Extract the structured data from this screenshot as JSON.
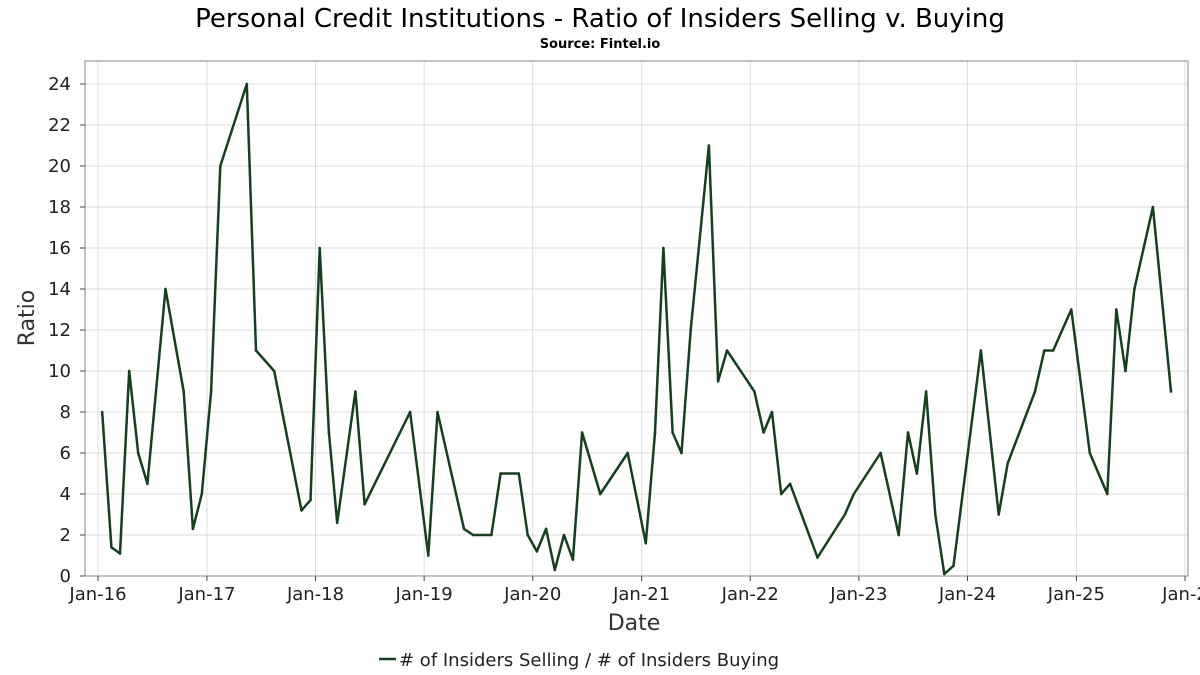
{
  "colors": {
    "series": "#173f1f",
    "grid": "#dddddd"
  },
  "chart_data": {
    "type": "line",
    "title": "Personal Credit Institutions - Ratio of Insiders Selling v. Buying",
    "subtitle": "Source: Fintel.io",
    "xlabel": "Date",
    "ylabel": "Ratio",
    "xlim": [
      "2016-01-01",
      "2026-01-01"
    ],
    "ylim": [
      0,
      25
    ],
    "yticks": [
      0,
      2,
      4,
      6,
      8,
      10,
      12,
      14,
      16,
      18,
      20,
      22,
      24
    ],
    "xticks": [
      {
        "date": "2016-01-01",
        "label": "Jan-16"
      },
      {
        "date": "2017-01-01",
        "label": "Jan-17"
      },
      {
        "date": "2018-01-01",
        "label": "Jan-18"
      },
      {
        "date": "2019-01-01",
        "label": "Jan-19"
      },
      {
        "date": "2020-01-01",
        "label": "Jan-20"
      },
      {
        "date": "2021-01-01",
        "label": "Jan-21"
      },
      {
        "date": "2022-01-01",
        "label": "Jan-22"
      },
      {
        "date": "2023-01-01",
        "label": "Jan-23"
      },
      {
        "date": "2024-01-01",
        "label": "Jan-24"
      },
      {
        "date": "2025-01-01",
        "label": "Jan-25"
      },
      {
        "date": "2026-01-01",
        "label": "Jan-2"
      }
    ],
    "grid": true,
    "legend": "bottom-center",
    "series": [
      {
        "name": "# of Insiders Selling / # of Insiders Buying",
        "points": [
          [
            "2016-01-15",
            8.0
          ],
          [
            "2016-02-15",
            1.4
          ],
          [
            "2016-03-15",
            1.1
          ],
          [
            "2016-04-15",
            10.0
          ],
          [
            "2016-05-15",
            6.0
          ],
          [
            "2016-06-15",
            4.5
          ],
          [
            "2016-08-15",
            14.0
          ],
          [
            "2016-10-15",
            9.0
          ],
          [
            "2016-11-15",
            2.3
          ],
          [
            "2016-12-15",
            4.0
          ],
          [
            "2017-01-15",
            9.0
          ],
          [
            "2017-02-15",
            20.0
          ],
          [
            "2017-05-15",
            24.0
          ],
          [
            "2017-06-15",
            11.0
          ],
          [
            "2017-08-15",
            10.0
          ],
          [
            "2017-11-15",
            3.2
          ],
          [
            "2017-12-15",
            3.7
          ],
          [
            "2018-01-15",
            16.0
          ],
          [
            "2018-02-15",
            7.0
          ],
          [
            "2018-03-15",
            2.6
          ],
          [
            "2018-05-15",
            9.0
          ],
          [
            "2018-06-15",
            3.5
          ],
          [
            "2018-11-15",
            8.0
          ],
          [
            "2019-01-15",
            1.0
          ],
          [
            "2019-02-15",
            8.0
          ],
          [
            "2019-05-15",
            2.3
          ],
          [
            "2019-06-15",
            2.0
          ],
          [
            "2019-08-15",
            2.0
          ],
          [
            "2019-09-15",
            5.0
          ],
          [
            "2019-11-15",
            5.0
          ],
          [
            "2019-12-15",
            2.0
          ],
          [
            "2020-01-15",
            1.2
          ],
          [
            "2020-02-15",
            2.3
          ],
          [
            "2020-03-15",
            0.3
          ],
          [
            "2020-04-15",
            2.0
          ],
          [
            "2020-05-15",
            0.8
          ],
          [
            "2020-06-15",
            7.0
          ],
          [
            "2020-08-15",
            4.0
          ],
          [
            "2020-11-15",
            6.0
          ],
          [
            "2021-01-15",
            1.6
          ],
          [
            "2021-02-15",
            7.0
          ],
          [
            "2021-03-15",
            16.0
          ],
          [
            "2021-04-15",
            7.0
          ],
          [
            "2021-05-15",
            6.0
          ],
          [
            "2021-06-15",
            12.0
          ],
          [
            "2021-08-15",
            21.0
          ],
          [
            "2021-09-15",
            9.5
          ],
          [
            "2021-10-15",
            11.0
          ],
          [
            "2022-01-15",
            9.0
          ],
          [
            "2022-02-15",
            7.0
          ],
          [
            "2022-03-15",
            8.0
          ],
          [
            "2022-04-15",
            4.0
          ],
          [
            "2022-05-15",
            4.5
          ],
          [
            "2022-08-15",
            0.9
          ],
          [
            "2022-11-15",
            3.0
          ],
          [
            "2022-12-15",
            4.0
          ],
          [
            "2023-03-15",
            6.0
          ],
          [
            "2023-05-15",
            2.0
          ],
          [
            "2023-06-15",
            7.0
          ],
          [
            "2023-07-15",
            5.0
          ],
          [
            "2023-08-15",
            9.0
          ],
          [
            "2023-09-15",
            3.0
          ],
          [
            "2023-10-15",
            0.1
          ],
          [
            "2023-11-15",
            0.5
          ],
          [
            "2024-02-15",
            11.0
          ],
          [
            "2024-04-15",
            3.0
          ],
          [
            "2024-05-15",
            5.5
          ],
          [
            "2024-08-15",
            9.0
          ],
          [
            "2024-09-15",
            11.0
          ],
          [
            "2024-10-15",
            11.0
          ],
          [
            "2024-12-15",
            13.0
          ],
          [
            "2025-02-15",
            6.0
          ],
          [
            "2025-04-15",
            4.0
          ],
          [
            "2025-05-15",
            13.0
          ],
          [
            "2025-06-15",
            10.0
          ],
          [
            "2025-07-15",
            14.0
          ],
          [
            "2025-09-15",
            18.0
          ],
          [
            "2025-11-15",
            9.0
          ]
        ]
      }
    ]
  }
}
